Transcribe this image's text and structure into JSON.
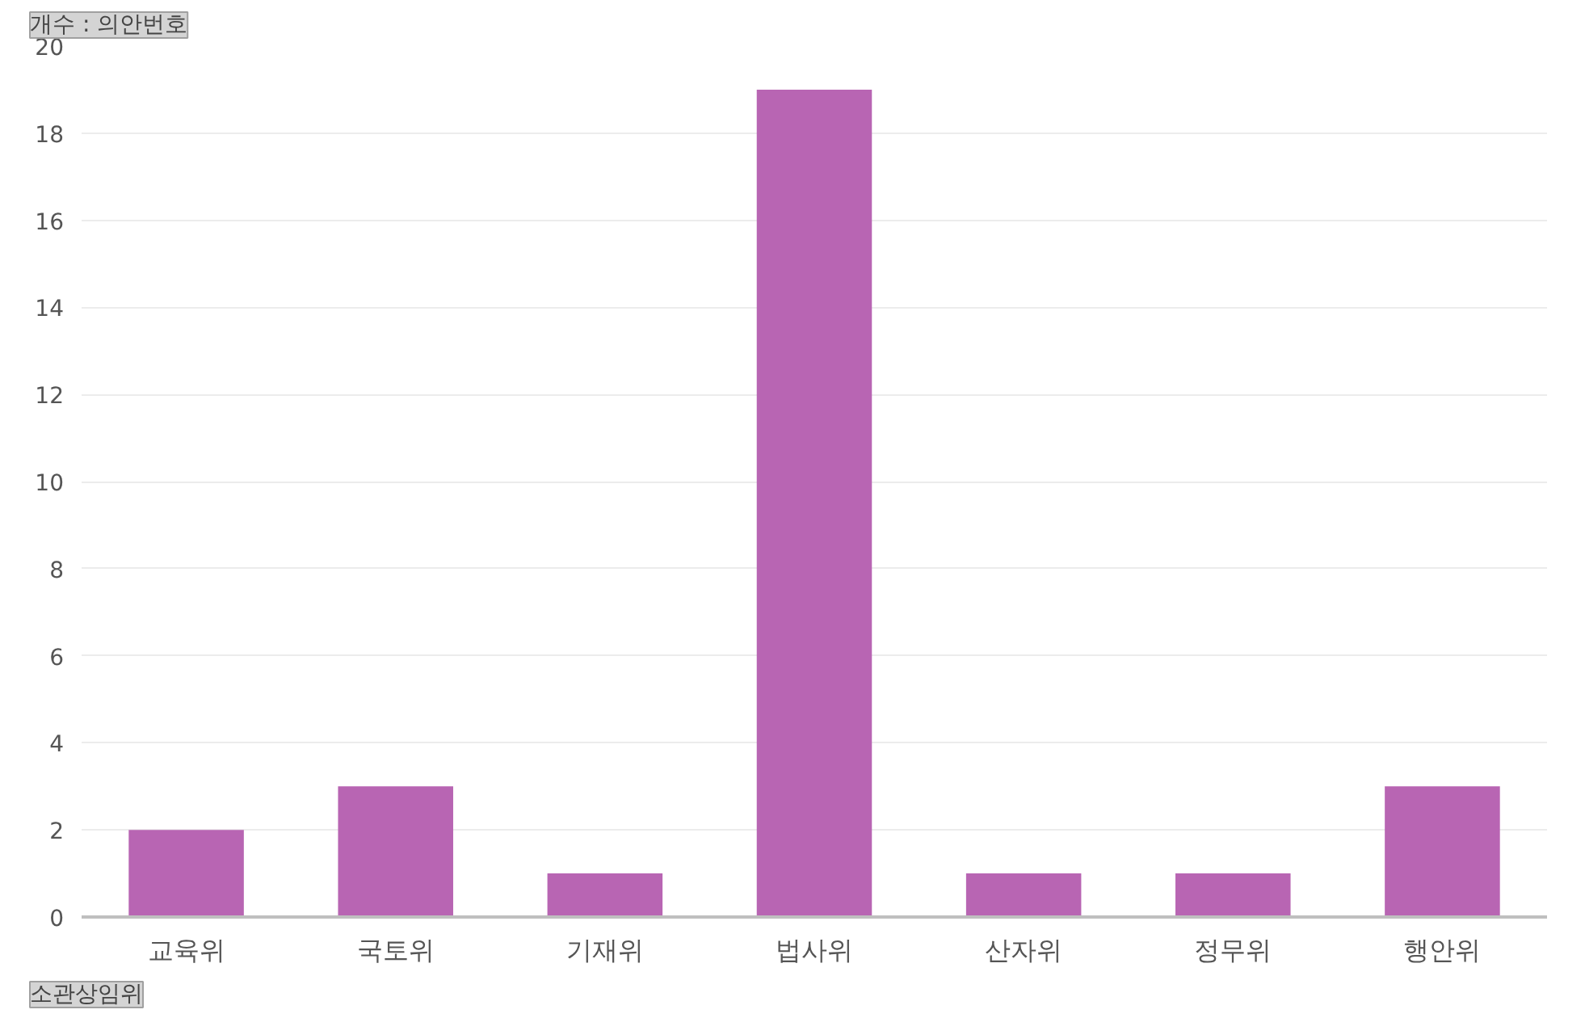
{
  "chart_data": {
    "type": "bar",
    "title": "개수 : 의안번호",
    "xlabel": "소관상임위",
    "categories": [
      "교육위",
      "국토위",
      "기재위",
      "법사위",
      "산자위",
      "정무위",
      "행안위"
    ],
    "values": [
      2,
      3,
      1,
      19,
      1,
      1,
      3
    ],
    "color": "#b865b3",
    "ylim": [
      0,
      20
    ],
    "yticks": [
      0,
      2,
      4,
      6,
      8,
      10,
      12,
      14,
      16,
      18,
      20
    ],
    "grid": "y"
  }
}
